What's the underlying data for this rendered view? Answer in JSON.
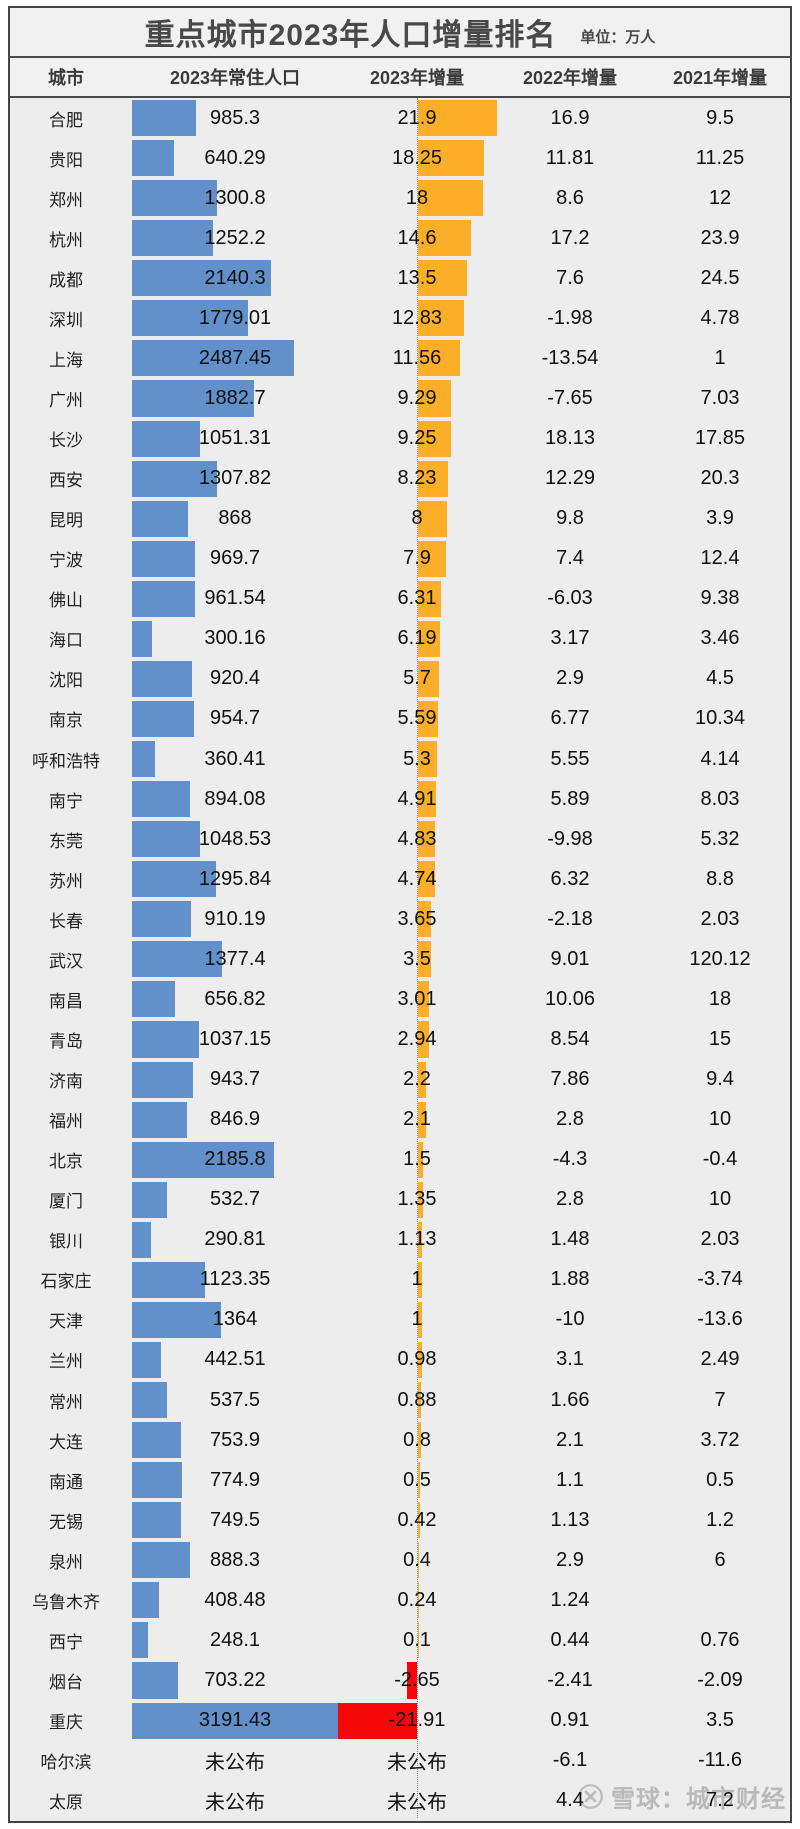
{
  "title": {
    "text": "重点城市2023年人口增量排名",
    "unit_label": "单位：万人"
  },
  "table": {
    "headers": [
      "城市",
      "2023年常住人口",
      "2023年增量",
      "2022年增量",
      "2021年增量"
    ],
    "not_published_label": "未公布",
    "rows": [
      {
        "city": "合肥",
        "population": "985.3",
        "inc2023": "21.9",
        "inc2022": "16.9",
        "inc2021": "9.5"
      },
      {
        "city": "贵阳",
        "population": "640.29",
        "inc2023": "18.25",
        "inc2022": "11.81",
        "inc2021": "11.25"
      },
      {
        "city": "郑州",
        "population": "1300.8",
        "inc2023": "18",
        "inc2022": "8.6",
        "inc2021": "12"
      },
      {
        "city": "杭州",
        "population": "1252.2",
        "inc2023": "14.6",
        "inc2022": "17.2",
        "inc2021": "23.9"
      },
      {
        "city": "成都",
        "population": "2140.3",
        "inc2023": "13.5",
        "inc2022": "7.6",
        "inc2021": "24.5"
      },
      {
        "city": "深圳",
        "population": "1779.01",
        "inc2023": "12.83",
        "inc2022": "-1.98",
        "inc2021": "4.78"
      },
      {
        "city": "上海",
        "population": "2487.45",
        "inc2023": "11.56",
        "inc2022": "-13.54",
        "inc2021": "1"
      },
      {
        "city": "广州",
        "population": "1882.7",
        "inc2023": "9.29",
        "inc2022": "-7.65",
        "inc2021": "7.03"
      },
      {
        "city": "长沙",
        "population": "1051.31",
        "inc2023": "9.25",
        "inc2022": "18.13",
        "inc2021": "17.85"
      },
      {
        "city": "西安",
        "population": "1307.82",
        "inc2023": "8.23",
        "inc2022": "12.29",
        "inc2021": "20.3"
      },
      {
        "city": "昆明",
        "population": "868",
        "inc2023": "8",
        "inc2022": "9.8",
        "inc2021": "3.9"
      },
      {
        "city": "宁波",
        "population": "969.7",
        "inc2023": "7.9",
        "inc2022": "7.4",
        "inc2021": "12.4"
      },
      {
        "city": "佛山",
        "population": "961.54",
        "inc2023": "6.31",
        "inc2022": "-6.03",
        "inc2021": "9.38"
      },
      {
        "city": "海口",
        "population": "300.16",
        "inc2023": "6.19",
        "inc2022": "3.17",
        "inc2021": "3.46"
      },
      {
        "city": "沈阳",
        "population": "920.4",
        "inc2023": "5.7",
        "inc2022": "2.9",
        "inc2021": "4.5"
      },
      {
        "city": "南京",
        "population": "954.7",
        "inc2023": "5.59",
        "inc2022": "6.77",
        "inc2021": "10.34"
      },
      {
        "city": "呼和浩特",
        "population": "360.41",
        "inc2023": "5.3",
        "inc2022": "5.55",
        "inc2021": "4.14"
      },
      {
        "city": "南宁",
        "population": "894.08",
        "inc2023": "4.91",
        "inc2022": "5.89",
        "inc2021": "8.03"
      },
      {
        "city": "东莞",
        "population": "1048.53",
        "inc2023": "4.83",
        "inc2022": "-9.98",
        "inc2021": "5.32"
      },
      {
        "city": "苏州",
        "population": "1295.84",
        "inc2023": "4.74",
        "inc2022": "6.32",
        "inc2021": "8.8"
      },
      {
        "city": "长春",
        "population": "910.19",
        "inc2023": "3.65",
        "inc2022": "-2.18",
        "inc2021": "2.03"
      },
      {
        "city": "武汉",
        "population": "1377.4",
        "inc2023": "3.5",
        "inc2022": "9.01",
        "inc2021": "120.12"
      },
      {
        "city": "南昌",
        "population": "656.82",
        "inc2023": "3.01",
        "inc2022": "10.06",
        "inc2021": "18"
      },
      {
        "city": "青岛",
        "population": "1037.15",
        "inc2023": "2.94",
        "inc2022": "8.54",
        "inc2021": "15"
      },
      {
        "city": "济南",
        "population": "943.7",
        "inc2023": "2.2",
        "inc2022": "7.86",
        "inc2021": "9.4"
      },
      {
        "city": "福州",
        "population": "846.9",
        "inc2023": "2.1",
        "inc2022": "2.8",
        "inc2021": "10"
      },
      {
        "city": "北京",
        "population": "2185.8",
        "inc2023": "1.5",
        "inc2022": "-4.3",
        "inc2021": "-0.4"
      },
      {
        "city": "厦门",
        "population": "532.7",
        "inc2023": "1.35",
        "inc2022": "2.8",
        "inc2021": "10"
      },
      {
        "city": "银川",
        "population": "290.81",
        "inc2023": "1.13",
        "inc2022": "1.48",
        "inc2021": "2.03"
      },
      {
        "city": "石家庄",
        "population": "1123.35",
        "inc2023": "1",
        "inc2022": "1.88",
        "inc2021": "-3.74"
      },
      {
        "city": "天津",
        "population": "1364",
        "inc2023": "1",
        "inc2022": "-10",
        "inc2021": "-13.6"
      },
      {
        "city": "兰州",
        "population": "442.51",
        "inc2023": "0.98",
        "inc2022": "3.1",
        "inc2021": "2.49"
      },
      {
        "city": "常州",
        "population": "537.5",
        "inc2023": "0.88",
        "inc2022": "1.66",
        "inc2021": "7"
      },
      {
        "city": "大连",
        "population": "753.9",
        "inc2023": "0.8",
        "inc2022": "2.1",
        "inc2021": "3.72"
      },
      {
        "city": "南通",
        "population": "774.9",
        "inc2023": "0.5",
        "inc2022": "1.1",
        "inc2021": "0.5"
      },
      {
        "city": "无锡",
        "population": "749.5",
        "inc2023": "0.42",
        "inc2022": "1.13",
        "inc2021": "1.2"
      },
      {
        "city": "泉州",
        "population": "888.3",
        "inc2023": "0.4",
        "inc2022": "2.9",
        "inc2021": "6"
      },
      {
        "city": "乌鲁木齐",
        "population": "408.48",
        "inc2023": "0.24",
        "inc2022": "1.24",
        "inc2021": ""
      },
      {
        "city": "西宁",
        "population": "248.1",
        "inc2023": "0.1",
        "inc2022": "0.44",
        "inc2021": "0.76"
      },
      {
        "city": "烟台",
        "population": "703.22",
        "inc2023": "-2.65",
        "inc2022": "-2.41",
        "inc2021": "-2.09"
      },
      {
        "city": "重庆",
        "population": "3191.43",
        "inc2023": "-21.91",
        "inc2022": "0.91",
        "inc2021": "3.5"
      },
      {
        "city": "哈尔滨",
        "population": "未公布",
        "inc2023": "未公布",
        "inc2022": "-6.1",
        "inc2021": "-11.6"
      },
      {
        "city": "太原",
        "population": "未公布",
        "inc2023": "未公布",
        "inc2022": "4.4",
        "inc2021": "7.2"
      }
    ]
  },
  "watermark": {
    "source": "雪球：城市财经",
    "icon": "xueqiu-logo"
  },
  "colors": {
    "population_bar": "#6190CA",
    "increase_bar_positive": "#FBAE28",
    "increase_bar_negative": "#F50808",
    "background": "#EDEDED",
    "title_text": "#484848"
  },
  "chart_data": {
    "type": "bar",
    "orientation": "horizontal",
    "title": "重点城市2023年人口增量排名",
    "unit": "万人",
    "grid": false,
    "legend_position": "none",
    "baseline_x": 0,
    "categories": [
      "合肥",
      "贵阳",
      "郑州",
      "杭州",
      "成都",
      "深圳",
      "上海",
      "广州",
      "长沙",
      "西安",
      "昆明",
      "宁波",
      "佛山",
      "海口",
      "沈阳",
      "南京",
      "呼和浩特",
      "南宁",
      "东莞",
      "苏州",
      "长春",
      "武汉",
      "南昌",
      "青岛",
      "济南",
      "福州",
      "北京",
      "厦门",
      "银川",
      "石家庄",
      "天津",
      "兰州",
      "常州",
      "大连",
      "南通",
      "无锡",
      "泉州",
      "乌鲁木齐",
      "西宁",
      "烟台",
      "重庆",
      "哈尔滨",
      "太原"
    ],
    "series": [
      {
        "name": "2023年常住人口",
        "values": [
          985.3,
          640.29,
          1300.8,
          1252.2,
          2140.3,
          1779.01,
          2487.45,
          1882.7,
          1051.31,
          1307.82,
          868,
          969.7,
          961.54,
          300.16,
          920.4,
          954.7,
          360.41,
          894.08,
          1048.53,
          1295.84,
          910.19,
          1377.4,
          656.82,
          1037.15,
          943.7,
          846.9,
          2185.8,
          532.7,
          290.81,
          1123.35,
          1364,
          442.51,
          537.5,
          753.9,
          774.9,
          749.5,
          888.3,
          408.48,
          248.1,
          703.22,
          3191.43,
          null,
          null
        ]
      },
      {
        "name": "2023年增量",
        "values": [
          21.9,
          18.25,
          18,
          14.6,
          13.5,
          12.83,
          11.56,
          9.29,
          9.25,
          8.23,
          8,
          7.9,
          6.31,
          6.19,
          5.7,
          5.59,
          5.3,
          4.91,
          4.83,
          4.74,
          3.65,
          3.5,
          3.01,
          2.94,
          2.2,
          2.1,
          1.5,
          1.35,
          1.13,
          1,
          1,
          0.98,
          0.88,
          0.8,
          0.5,
          0.42,
          0.4,
          0.24,
          0.1,
          -2.65,
          -21.91,
          null,
          null
        ]
      },
      {
        "name": "2022年增量",
        "values": [
          16.9,
          11.81,
          8.6,
          17.2,
          7.6,
          -1.98,
          -13.54,
          -7.65,
          18.13,
          12.29,
          9.8,
          7.4,
          -6.03,
          3.17,
          2.9,
          6.77,
          5.55,
          5.89,
          -9.98,
          6.32,
          -2.18,
          9.01,
          10.06,
          8.54,
          7.86,
          2.8,
          -4.3,
          2.8,
          1.48,
          1.88,
          -10,
          3.1,
          1.66,
          2.1,
          1.1,
          1.13,
          2.9,
          1.24,
          0.44,
          -2.41,
          0.91,
          -6.1,
          4.4
        ]
      },
      {
        "name": "2021年增量",
        "values": [
          9.5,
          11.25,
          12,
          23.9,
          24.5,
          4.78,
          1,
          7.03,
          17.85,
          20.3,
          3.9,
          12.4,
          9.38,
          3.46,
          4.5,
          10.34,
          4.14,
          8.03,
          5.32,
          8.8,
          2.03,
          120.12,
          18,
          15,
          9.4,
          10,
          -0.4,
          10,
          2.03,
          -3.74,
          -13.6,
          2.49,
          7,
          3.72,
          0.5,
          1.2,
          6,
          null,
          0.76,
          -2.09,
          3.5,
          -11.6,
          7.2
        ]
      }
    ]
  }
}
